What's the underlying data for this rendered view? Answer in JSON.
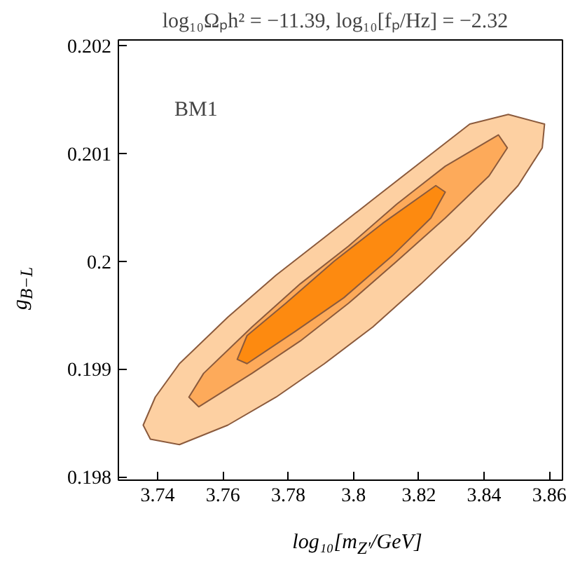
{
  "chart_data": {
    "type": "area",
    "title": "log₁₀Ωₚh² = −11.39,   log₁₀[fₚ/Hz] = −2.32",
    "xlabel": "log₁₀[m$_{Z′}$/GeV]",
    "ylabel": "g$_{B−L}$",
    "xlim": [
      3.728,
      3.864
    ],
    "ylim": [
      0.19797,
      0.20205
    ],
    "xticks": [
      3.74,
      3.76,
      3.78,
      3.8,
      3.82,
      3.84,
      3.86
    ],
    "yticks": [
      0.198,
      0.199,
      0.2,
      0.201,
      0.202
    ],
    "grid": false,
    "annotations": [
      "BM1"
    ],
    "series": [
      {
        "color": "#fdd0a2",
        "x": [
          3.7356,
          3.7393,
          3.7467,
          3.7615,
          3.7763,
          3.7911,
          3.8059,
          3.8207,
          3.8356,
          3.8474,
          3.8585,
          3.8578,
          3.8504,
          3.8356,
          3.8207,
          3.8059,
          3.7911,
          3.7763,
          3.7615,
          3.7467,
          3.7378
        ],
        "values": [
          0.19848,
          0.19874,
          0.19905,
          0.19948,
          0.19987,
          0.20022,
          0.20057,
          0.20092,
          0.20127,
          0.20136,
          0.20127,
          0.20105,
          0.2007,
          0.20022,
          0.19979,
          0.19939,
          0.19905,
          0.19874,
          0.19848,
          0.1983,
          0.19835
        ]
      },
      {
        "color": "#fdaa5a",
        "x": [
          3.7496,
          3.7541,
          3.7689,
          3.7837,
          3.7985,
          3.8133,
          3.8281,
          3.8444,
          3.8471,
          3.8415,
          3.8281,
          3.8133,
          3.7985,
          3.7837,
          3.7689,
          3.7526
        ],
        "values": [
          0.19874,
          0.19896,
          0.19939,
          0.19979,
          0.20014,
          0.20053,
          0.20088,
          0.20117,
          0.20105,
          0.20079,
          0.2004,
          0.2,
          0.19961,
          0.19926,
          0.19896,
          0.19865
        ]
      },
      {
        "color": "#fd8a10",
        "x": [
          3.7644,
          3.7674,
          3.7793,
          3.7941,
          3.8089,
          3.8252,
          3.8281,
          3.8237,
          3.8119,
          3.797,
          3.7822,
          3.7674
        ],
        "values": [
          0.19909,
          0.19931,
          0.19961,
          0.2,
          0.20035,
          0.2007,
          0.20064,
          0.2004,
          0.20005,
          0.19966,
          0.19935,
          0.19905
        ]
      }
    ]
  }
}
